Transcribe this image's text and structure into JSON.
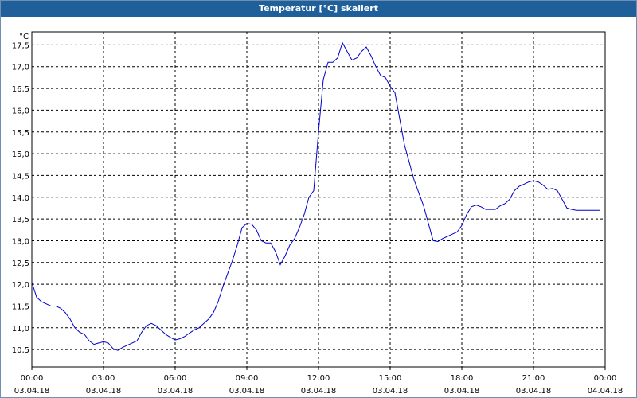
{
  "window": {
    "title": "Temperatur [°C] skaliert"
  },
  "chart_data": {
    "type": "line",
    "title": "Temperatur [°C] skaliert",
    "ylabel": "°C",
    "xlabel": "",
    "ylim": [
      10.1,
      17.8
    ],
    "yticks": [
      "10,5",
      "11,0",
      "11,5",
      "12,0",
      "12,5",
      "13,0",
      "13,5",
      "14,0",
      "14,5",
      "15,0",
      "15,5",
      "16,0",
      "16,5",
      "17,0",
      "17,5"
    ],
    "ytick_values": [
      10.5,
      11.0,
      11.5,
      12.0,
      12.5,
      13.0,
      13.5,
      14.0,
      14.5,
      15.0,
      15.5,
      16.0,
      16.5,
      17.0,
      17.5
    ],
    "xlim": [
      0,
      24
    ],
    "xticks": [
      {
        "time": "00:00",
        "date": "03.04.18"
      },
      {
        "time": "03:00",
        "date": "03.04.18"
      },
      {
        "time": "06:00",
        "date": "03.04.18"
      },
      {
        "time": "09:00",
        "date": "03.04.18"
      },
      {
        "time": "12:00",
        "date": "03.04.18"
      },
      {
        "time": "15:00",
        "date": "03.04.18"
      },
      {
        "time": "18:00",
        "date": "03.04.18"
      },
      {
        "time": "21:00",
        "date": "03.04.18"
      },
      {
        "time": "00:00",
        "date": "04.04.18"
      }
    ],
    "xtick_hours": [
      0,
      3,
      6,
      9,
      12,
      15,
      18,
      21,
      24
    ],
    "grid": true,
    "line_color": "#0000cc",
    "series": [
      {
        "x": [
          0.0,
          0.2,
          0.4,
          0.6,
          0.8,
          1.0,
          1.2,
          1.4,
          1.6,
          1.8,
          2.0,
          2.2,
          2.4,
          2.6,
          2.8,
          3.0,
          3.2,
          3.4,
          3.6,
          3.8,
          4.0,
          4.2,
          4.4,
          4.6,
          4.8,
          5.0,
          5.2,
          5.4,
          5.6,
          5.8,
          6.0,
          6.2,
          6.4,
          6.6,
          6.8,
          7.0,
          7.2,
          7.4,
          7.6,
          7.8,
          8.0,
          8.2,
          8.4,
          8.6,
          8.8,
          9.0,
          9.2,
          9.4,
          9.6,
          9.8,
          10.0,
          10.2,
          10.4,
          10.6,
          10.8,
          11.0,
          11.2,
          11.4,
          11.6,
          11.8,
          12.0,
          12.2,
          12.4,
          12.6,
          12.8,
          13.0,
          13.2,
          13.4,
          13.6,
          13.8,
          14.0,
          14.2,
          14.4,
          14.6,
          14.8,
          15.0,
          15.2,
          15.4,
          15.6,
          15.8,
          16.0,
          16.2,
          16.4,
          16.6,
          16.8,
          17.0,
          17.2,
          17.4,
          17.6,
          17.8,
          18.0,
          18.2,
          18.4,
          18.6,
          18.8,
          19.0,
          19.2,
          19.4,
          19.6,
          19.8,
          20.0,
          20.2,
          20.4,
          20.6,
          20.8,
          21.0,
          21.2,
          21.4,
          21.6,
          21.8,
          22.0,
          22.2,
          22.4,
          22.6,
          22.8,
          23.0,
          23.2,
          23.4,
          23.6,
          23.8
        ],
        "y": [
          12.05,
          11.7,
          11.6,
          11.55,
          11.5,
          11.5,
          11.45,
          11.35,
          11.2,
          11.0,
          10.9,
          10.85,
          10.7,
          10.62,
          10.65,
          10.68,
          10.65,
          10.52,
          10.48,
          10.55,
          10.6,
          10.65,
          10.7,
          10.9,
          11.05,
          11.1,
          11.05,
          10.95,
          10.85,
          10.78,
          10.72,
          10.75,
          10.8,
          10.88,
          10.95,
          11.0,
          11.1,
          11.2,
          11.35,
          11.6,
          11.95,
          12.25,
          12.55,
          12.9,
          13.3,
          13.4,
          13.38,
          13.25,
          13.0,
          12.95,
          12.95,
          12.75,
          12.45,
          12.65,
          12.9,
          13.05,
          13.3,
          13.6,
          14.0,
          14.15,
          15.5,
          16.7,
          17.1,
          17.1,
          17.2,
          17.55,
          17.35,
          17.15,
          17.2,
          17.35,
          17.45,
          17.25,
          17.0,
          16.8,
          16.75,
          16.55,
          16.4,
          15.8,
          15.2,
          14.8,
          14.4,
          14.1,
          13.8,
          13.4,
          13.0,
          12.98,
          13.05,
          13.1,
          13.15,
          13.2,
          13.35,
          13.6,
          13.78,
          13.82,
          13.78,
          13.72,
          13.72,
          13.72,
          13.8,
          13.85,
          13.95,
          14.15,
          14.25,
          14.3,
          14.35,
          14.38,
          14.35,
          14.28,
          14.18,
          14.2,
          14.15,
          13.95,
          13.75,
          13.72,
          13.7,
          13.7,
          13.7,
          13.7,
          13.7,
          13.7
        ]
      }
    ]
  }
}
